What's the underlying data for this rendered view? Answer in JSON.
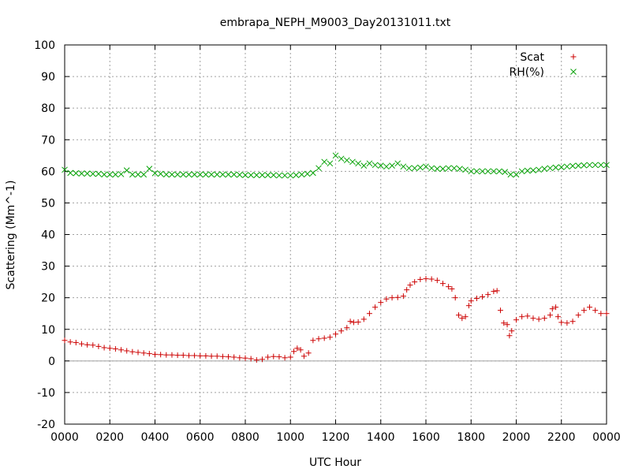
{
  "chart_data": {
    "type": "scatter",
    "title": "embrapa_NEPH_M9003_Day20131011.txt",
    "xlabel": "UTC Hour",
    "ylabel": "Scattering (Mm^-1)",
    "xlim": [
      0,
      24
    ],
    "ylim": [
      -20,
      100
    ],
    "grid": true,
    "legend_position": "top-right",
    "x_ticks": [
      {
        "v": 0,
        "label": "0000"
      },
      {
        "v": 2,
        "label": "0200"
      },
      {
        "v": 4,
        "label": "0400"
      },
      {
        "v": 6,
        "label": "0600"
      },
      {
        "v": 8,
        "label": "0800"
      },
      {
        "v": 10,
        "label": "1000"
      },
      {
        "v": 12,
        "label": "1200"
      },
      {
        "v": 14,
        "label": "1400"
      },
      {
        "v": 16,
        "label": "1600"
      },
      {
        "v": 18,
        "label": "1800"
      },
      {
        "v": 20,
        "label": "2000"
      },
      {
        "v": 22,
        "label": "2200"
      },
      {
        "v": 24,
        "label": "0000"
      }
    ],
    "y_ticks": [
      -20,
      -10,
      0,
      10,
      20,
      30,
      40,
      50,
      60,
      70,
      80,
      90,
      100
    ],
    "series": [
      {
        "name": "Scat",
        "marker": "plus",
        "color": "#cc0000",
        "points": [
          [
            0.0,
            6.5
          ],
          [
            0.25,
            6.0
          ],
          [
            0.5,
            5.8
          ],
          [
            0.75,
            5.4
          ],
          [
            1.0,
            5.1
          ],
          [
            1.25,
            5.0
          ],
          [
            1.5,
            4.6
          ],
          [
            1.75,
            4.2
          ],
          [
            2.0,
            4.0
          ],
          [
            2.25,
            3.8
          ],
          [
            2.5,
            3.5
          ],
          [
            2.75,
            3.2
          ],
          [
            3.0,
            2.9
          ],
          [
            3.25,
            2.7
          ],
          [
            3.5,
            2.5
          ],
          [
            3.75,
            2.3
          ],
          [
            4.0,
            2.1
          ],
          [
            4.25,
            2.0
          ],
          [
            4.5,
            1.9
          ],
          [
            4.75,
            1.9
          ],
          [
            5.0,
            1.8
          ],
          [
            5.25,
            1.8
          ],
          [
            5.5,
            1.7
          ],
          [
            5.75,
            1.7
          ],
          [
            6.0,
            1.6
          ],
          [
            6.25,
            1.6
          ],
          [
            6.5,
            1.5
          ],
          [
            6.75,
            1.5
          ],
          [
            7.0,
            1.4
          ],
          [
            7.25,
            1.3
          ],
          [
            7.5,
            1.2
          ],
          [
            7.75,
            1.0
          ],
          [
            8.0,
            0.9
          ],
          [
            8.25,
            0.7
          ],
          [
            8.5,
            0.3
          ],
          [
            8.75,
            0.5
          ],
          [
            9.0,
            1.2
          ],
          [
            9.25,
            1.4
          ],
          [
            9.5,
            1.3
          ],
          [
            9.75,
            1.0
          ],
          [
            10.0,
            1.2
          ],
          [
            10.15,
            3.0
          ],
          [
            10.3,
            4.0
          ],
          [
            10.45,
            3.5
          ],
          [
            10.6,
            1.5
          ],
          [
            10.8,
            2.5
          ],
          [
            11.0,
            6.5
          ],
          [
            11.25,
            7.0
          ],
          [
            11.5,
            7.2
          ],
          [
            11.75,
            7.5
          ],
          [
            12.0,
            8.5
          ],
          [
            12.25,
            9.5
          ],
          [
            12.5,
            10.5
          ],
          [
            12.65,
            12.5
          ],
          [
            12.8,
            12.2
          ],
          [
            13.0,
            12.3
          ],
          [
            13.25,
            13.2
          ],
          [
            13.5,
            15.0
          ],
          [
            13.75,
            17.0
          ],
          [
            14.0,
            18.5
          ],
          [
            14.25,
            19.6
          ],
          [
            14.5,
            20.0
          ],
          [
            14.75,
            20.1
          ],
          [
            15.0,
            20.5
          ],
          [
            15.15,
            22.5
          ],
          [
            15.3,
            24.0
          ],
          [
            15.5,
            25.0
          ],
          [
            15.75,
            25.8
          ],
          [
            16.0,
            26.0
          ],
          [
            16.25,
            25.9
          ],
          [
            16.5,
            25.5
          ],
          [
            16.75,
            24.5
          ],
          [
            17.0,
            23.5
          ],
          [
            17.15,
            22.8
          ],
          [
            17.3,
            20.0
          ],
          [
            17.45,
            14.5
          ],
          [
            17.6,
            13.5
          ],
          [
            17.75,
            14.0
          ],
          [
            17.9,
            17.5
          ],
          [
            18.0,
            19.0
          ],
          [
            18.25,
            19.8
          ],
          [
            18.5,
            20.3
          ],
          [
            18.75,
            21.0
          ],
          [
            19.0,
            22.0
          ],
          [
            19.15,
            22.2
          ],
          [
            19.3,
            16.0
          ],
          [
            19.45,
            12.0
          ],
          [
            19.6,
            11.5
          ],
          [
            19.7,
            8.0
          ],
          [
            19.8,
            9.5
          ],
          [
            20.0,
            13.0
          ],
          [
            20.25,
            14.0
          ],
          [
            20.5,
            14.2
          ],
          [
            20.75,
            13.5
          ],
          [
            21.0,
            13.2
          ],
          [
            21.25,
            13.5
          ],
          [
            21.5,
            14.5
          ],
          [
            21.6,
            16.5
          ],
          [
            21.75,
            17.0
          ],
          [
            21.85,
            14.0
          ],
          [
            22.0,
            12.2
          ],
          [
            22.25,
            12.0
          ],
          [
            22.5,
            12.5
          ],
          [
            22.75,
            14.5
          ],
          [
            23.0,
            16.0
          ],
          [
            23.25,
            17.0
          ],
          [
            23.5,
            16.0
          ],
          [
            23.75,
            15.0
          ],
          [
            24.0,
            15.0
          ]
        ]
      },
      {
        "name": "RH(%)",
        "marker": "cross",
        "color": "#00a000",
        "points": [
          [
            0.0,
            60.5
          ],
          [
            0.25,
            59.5
          ],
          [
            0.5,
            59.4
          ],
          [
            0.75,
            59.3
          ],
          [
            1.0,
            59.3
          ],
          [
            1.25,
            59.2
          ],
          [
            1.5,
            59.2
          ],
          [
            1.75,
            59.0
          ],
          [
            2.0,
            59.0
          ],
          [
            2.25,
            59.0
          ],
          [
            2.5,
            59.1
          ],
          [
            2.75,
            60.3
          ],
          [
            3.0,
            59.0
          ],
          [
            3.25,
            59.0
          ],
          [
            3.5,
            59.0
          ],
          [
            3.75,
            60.8
          ],
          [
            4.0,
            59.4
          ],
          [
            4.25,
            59.2
          ],
          [
            4.5,
            59.0
          ],
          [
            4.75,
            59.0
          ],
          [
            5.0,
            59.0
          ],
          [
            5.25,
            59.0
          ],
          [
            5.5,
            59.0
          ],
          [
            5.75,
            59.0
          ],
          [
            6.0,
            59.0
          ],
          [
            6.25,
            59.0
          ],
          [
            6.5,
            59.0
          ],
          [
            6.75,
            59.0
          ],
          [
            7.0,
            59.0
          ],
          [
            7.25,
            59.0
          ],
          [
            7.5,
            59.0
          ],
          [
            7.75,
            58.9
          ],
          [
            8.0,
            58.8
          ],
          [
            8.25,
            58.8
          ],
          [
            8.5,
            58.8
          ],
          [
            8.75,
            58.8
          ],
          [
            9.0,
            58.8
          ],
          [
            9.25,
            58.8
          ],
          [
            9.5,
            58.7
          ],
          [
            9.75,
            58.7
          ],
          [
            10.0,
            58.7
          ],
          [
            10.25,
            58.8
          ],
          [
            10.5,
            59.0
          ],
          [
            10.75,
            59.2
          ],
          [
            11.0,
            59.5
          ],
          [
            11.25,
            61.0
          ],
          [
            11.5,
            63.0
          ],
          [
            11.75,
            62.5
          ],
          [
            12.0,
            65.0
          ],
          [
            12.25,
            64.0
          ],
          [
            12.5,
            63.5
          ],
          [
            12.75,
            63.0
          ],
          [
            13.0,
            62.5
          ],
          [
            13.25,
            61.8
          ],
          [
            13.5,
            62.5
          ],
          [
            13.75,
            62.0
          ],
          [
            14.0,
            61.8
          ],
          [
            14.25,
            61.5
          ],
          [
            14.5,
            61.8
          ],
          [
            14.75,
            62.5
          ],
          [
            15.0,
            61.5
          ],
          [
            15.25,
            61.0
          ],
          [
            15.5,
            61.0
          ],
          [
            15.75,
            61.2
          ],
          [
            16.0,
            61.5
          ],
          [
            16.25,
            61.0
          ],
          [
            16.5,
            60.8
          ],
          [
            16.75,
            60.8
          ],
          [
            17.0,
            61.0
          ],
          [
            17.25,
            61.0
          ],
          [
            17.5,
            60.8
          ],
          [
            17.75,
            60.5
          ],
          [
            18.0,
            60.0
          ],
          [
            18.25,
            60.0
          ],
          [
            18.5,
            60.0
          ],
          [
            18.75,
            60.0
          ],
          [
            19.0,
            60.0
          ],
          [
            19.25,
            60.0
          ],
          [
            19.5,
            59.8
          ],
          [
            19.75,
            59.0
          ],
          [
            20.0,
            59.0
          ],
          [
            20.25,
            60.0
          ],
          [
            20.5,
            60.2
          ],
          [
            20.75,
            60.3
          ],
          [
            21.0,
            60.5
          ],
          [
            21.25,
            60.8
          ],
          [
            21.5,
            61.0
          ],
          [
            21.75,
            61.2
          ],
          [
            22.0,
            61.3
          ],
          [
            22.25,
            61.5
          ],
          [
            22.5,
            61.7
          ],
          [
            22.75,
            61.8
          ],
          [
            23.0,
            61.9
          ],
          [
            23.25,
            62.0
          ],
          [
            23.5,
            62.0
          ],
          [
            23.75,
            62.0
          ],
          [
            24.0,
            62.0
          ]
        ]
      }
    ]
  }
}
